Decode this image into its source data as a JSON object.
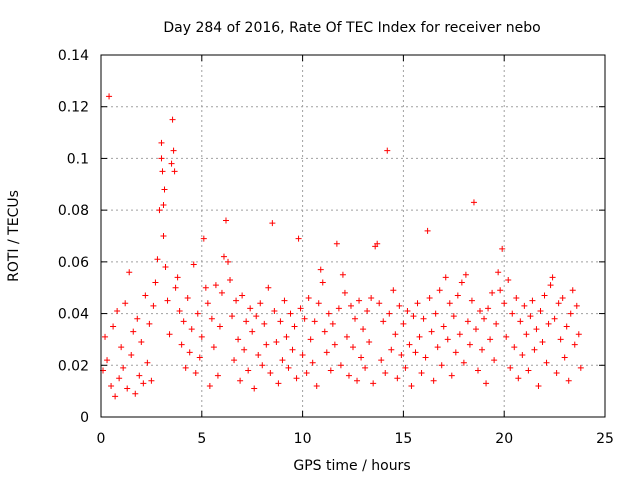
{
  "chart_data": {
    "type": "scatter",
    "title": "Day 284 of 2016, Rate Of TEC Index for receiver nebo",
    "xlabel": "GPS time / hours",
    "ylabel": "ROTI / TECUs",
    "xlim": [
      0,
      25
    ],
    "ylim": [
      0,
      0.14
    ],
    "grid": true,
    "marker": "+",
    "color": "#ff0000",
    "x_ticks": [
      0,
      5,
      10,
      15,
      20,
      25
    ],
    "x_tick_labels": [
      "0",
      "5",
      "10",
      "15",
      "20",
      "25"
    ],
    "y_ticks": [
      0,
      0.02,
      0.04,
      0.06,
      0.08,
      0.1,
      0.12,
      0.14
    ],
    "y_tick_labels": [
      "0",
      "0.02",
      "0.04",
      "0.06",
      "0.08",
      "0.1",
      "0.12",
      "0.14"
    ],
    "series": [
      {
        "name": "ROTI",
        "points": [
          [
            0.1,
            0.018
          ],
          [
            0.2,
            0.031
          ],
          [
            0.3,
            0.022
          ],
          [
            0.4,
            0.124
          ],
          [
            0.5,
            0.012
          ],
          [
            0.6,
            0.035
          ],
          [
            0.7,
            0.008
          ],
          [
            0.8,
            0.041
          ],
          [
            0.9,
            0.015
          ],
          [
            1.0,
            0.027
          ],
          [
            1.1,
            0.019
          ],
          [
            1.2,
            0.044
          ],
          [
            1.3,
            0.011
          ],
          [
            1.4,
            0.056
          ],
          [
            1.5,
            0.024
          ],
          [
            1.6,
            0.033
          ],
          [
            1.7,
            0.009
          ],
          [
            1.8,
            0.038
          ],
          [
            1.9,
            0.016
          ],
          [
            2.0,
            0.029
          ],
          [
            2.1,
            0.013
          ],
          [
            2.2,
            0.047
          ],
          [
            2.3,
            0.021
          ],
          [
            2.4,
            0.036
          ],
          [
            2.5,
            0.014
          ],
          [
            2.6,
            0.043
          ],
          [
            2.7,
            0.052
          ],
          [
            2.8,
            0.061
          ],
          [
            2.9,
            0.08
          ],
          [
            3.0,
            0.1
          ],
          [
            3.0,
            0.106
          ],
          [
            3.05,
            0.095
          ],
          [
            3.1,
            0.082
          ],
          [
            3.1,
            0.07
          ],
          [
            3.15,
            0.088
          ],
          [
            3.2,
            0.058
          ],
          [
            3.3,
            0.045
          ],
          [
            3.4,
            0.032
          ],
          [
            3.5,
            0.098
          ],
          [
            3.55,
            0.115
          ],
          [
            3.6,
            0.103
          ],
          [
            3.65,
            0.095
          ],
          [
            3.7,
            0.05
          ],
          [
            3.8,
            0.054
          ],
          [
            3.9,
            0.041
          ],
          [
            4.0,
            0.028
          ],
          [
            4.1,
            0.037
          ],
          [
            4.2,
            0.019
          ],
          [
            4.3,
            0.046
          ],
          [
            4.4,
            0.025
          ],
          [
            4.5,
            0.034
          ],
          [
            4.6,
            0.059
          ],
          [
            4.7,
            0.017
          ],
          [
            4.8,
            0.04
          ],
          [
            4.9,
            0.023
          ],
          [
            5.0,
            0.031
          ],
          [
            5.1,
            0.069
          ],
          [
            5.2,
            0.05
          ],
          [
            5.3,
            0.044
          ],
          [
            5.4,
            0.012
          ],
          [
            5.5,
            0.038
          ],
          [
            5.6,
            0.027
          ],
          [
            5.7,
            0.051
          ],
          [
            5.8,
            0.016
          ],
          [
            5.9,
            0.035
          ],
          [
            6.0,
            0.048
          ],
          [
            6.1,
            0.062
          ],
          [
            6.2,
            0.076
          ],
          [
            6.3,
            0.06
          ],
          [
            6.4,
            0.053
          ],
          [
            6.5,
            0.039
          ],
          [
            6.6,
            0.022
          ],
          [
            6.7,
            0.045
          ],
          [
            6.8,
            0.03
          ],
          [
            6.9,
            0.014
          ],
          [
            7.0,
            0.047
          ],
          [
            7.1,
            0.026
          ],
          [
            7.2,
            0.037
          ],
          [
            7.3,
            0.018
          ],
          [
            7.4,
            0.042
          ],
          [
            7.5,
            0.033
          ],
          [
            7.6,
            0.011
          ],
          [
            7.7,
            0.039
          ],
          [
            7.8,
            0.024
          ],
          [
            7.9,
            0.044
          ],
          [
            8.0,
            0.02
          ],
          [
            8.1,
            0.036
          ],
          [
            8.2,
            0.028
          ],
          [
            8.3,
            0.05
          ],
          [
            8.4,
            0.017
          ],
          [
            8.5,
            0.075
          ],
          [
            8.6,
            0.041
          ],
          [
            8.7,
            0.029
          ],
          [
            8.8,
            0.013
          ],
          [
            8.9,
            0.037
          ],
          [
            9.0,
            0.022
          ],
          [
            9.1,
            0.045
          ],
          [
            9.2,
            0.031
          ],
          [
            9.3,
            0.019
          ],
          [
            9.4,
            0.04
          ],
          [
            9.5,
            0.026
          ],
          [
            9.6,
            0.035
          ],
          [
            9.7,
            0.015
          ],
          [
            9.8,
            0.069
          ],
          [
            9.9,
            0.042
          ],
          [
            10.0,
            0.024
          ],
          [
            10.1,
            0.038
          ],
          [
            10.2,
            0.017
          ],
          [
            10.3,
            0.046
          ],
          [
            10.4,
            0.03
          ],
          [
            10.5,
            0.021
          ],
          [
            10.6,
            0.037
          ],
          [
            10.7,
            0.012
          ],
          [
            10.8,
            0.044
          ],
          [
            10.9,
            0.057
          ],
          [
            11.0,
            0.052
          ],
          [
            11.1,
            0.033
          ],
          [
            11.2,
            0.025
          ],
          [
            11.3,
            0.04
          ],
          [
            11.4,
            0.018
          ],
          [
            11.5,
            0.036
          ],
          [
            11.6,
            0.028
          ],
          [
            11.7,
            0.067
          ],
          [
            11.8,
            0.042
          ],
          [
            11.9,
            0.02
          ],
          [
            12.0,
            0.055
          ],
          [
            12.1,
            0.048
          ],
          [
            12.2,
            0.031
          ],
          [
            12.3,
            0.016
          ],
          [
            12.4,
            0.043
          ],
          [
            12.5,
            0.027
          ],
          [
            12.6,
            0.038
          ],
          [
            12.7,
            0.014
          ],
          [
            12.8,
            0.045
          ],
          [
            12.9,
            0.023
          ],
          [
            13.0,
            0.034
          ],
          [
            13.1,
            0.019
          ],
          [
            13.2,
            0.041
          ],
          [
            13.3,
            0.029
          ],
          [
            13.4,
            0.046
          ],
          [
            13.5,
            0.013
          ],
          [
            13.6,
            0.066
          ],
          [
            13.7,
            0.067
          ],
          [
            13.8,
            0.044
          ],
          [
            13.9,
            0.022
          ],
          [
            14.0,
            0.037
          ],
          [
            14.1,
            0.017
          ],
          [
            14.2,
            0.103
          ],
          [
            14.3,
            0.04
          ],
          [
            14.4,
            0.026
          ],
          [
            14.5,
            0.049
          ],
          [
            14.6,
            0.032
          ],
          [
            14.7,
            0.015
          ],
          [
            14.8,
            0.043
          ],
          [
            14.9,
            0.024
          ],
          [
            15.0,
            0.036
          ],
          [
            15.1,
            0.019
          ],
          [
            15.2,
            0.041
          ],
          [
            15.3,
            0.028
          ],
          [
            15.4,
            0.012
          ],
          [
            15.5,
            0.039
          ],
          [
            15.6,
            0.025
          ],
          [
            15.7,
            0.044
          ],
          [
            15.8,
            0.031
          ],
          [
            15.9,
            0.017
          ],
          [
            16.0,
            0.038
          ],
          [
            16.1,
            0.023
          ],
          [
            16.2,
            0.072
          ],
          [
            16.3,
            0.046
          ],
          [
            16.4,
            0.033
          ],
          [
            16.5,
            0.014
          ],
          [
            16.6,
            0.04
          ],
          [
            16.7,
            0.027
          ],
          [
            16.8,
            0.049
          ],
          [
            16.9,
            0.02
          ],
          [
            17.0,
            0.035
          ],
          [
            17.1,
            0.054
          ],
          [
            17.2,
            0.03
          ],
          [
            17.3,
            0.044
          ],
          [
            17.4,
            0.016
          ],
          [
            17.5,
            0.039
          ],
          [
            17.6,
            0.025
          ],
          [
            17.7,
            0.047
          ],
          [
            17.8,
            0.032
          ],
          [
            17.9,
            0.052
          ],
          [
            18.0,
            0.021
          ],
          [
            18.1,
            0.055
          ],
          [
            18.2,
            0.037
          ],
          [
            18.3,
            0.028
          ],
          [
            18.4,
            0.045
          ],
          [
            18.5,
            0.083
          ],
          [
            18.6,
            0.034
          ],
          [
            18.7,
            0.018
          ],
          [
            18.8,
            0.041
          ],
          [
            18.9,
            0.026
          ],
          [
            19.0,
            0.038
          ],
          [
            19.1,
            0.013
          ],
          [
            19.2,
            0.042
          ],
          [
            19.3,
            0.03
          ],
          [
            19.4,
            0.048
          ],
          [
            19.5,
            0.022
          ],
          [
            19.6,
            0.036
          ],
          [
            19.7,
            0.056
          ],
          [
            19.8,
            0.049
          ],
          [
            19.9,
            0.065
          ],
          [
            20.0,
            0.044
          ],
          [
            20.1,
            0.031
          ],
          [
            20.2,
            0.053
          ],
          [
            20.3,
            0.019
          ],
          [
            20.4,
            0.04
          ],
          [
            20.5,
            0.027
          ],
          [
            20.6,
            0.046
          ],
          [
            20.7,
            0.015
          ],
          [
            20.8,
            0.037
          ],
          [
            20.9,
            0.024
          ],
          [
            21.0,
            0.043
          ],
          [
            21.1,
            0.032
          ],
          [
            21.2,
            0.018
          ],
          [
            21.3,
            0.039
          ],
          [
            21.4,
            0.045
          ],
          [
            21.5,
            0.026
          ],
          [
            21.6,
            0.034
          ],
          [
            21.7,
            0.012
          ],
          [
            21.8,
            0.041
          ],
          [
            21.9,
            0.029
          ],
          [
            22.0,
            0.047
          ],
          [
            22.1,
            0.021
          ],
          [
            22.2,
            0.036
          ],
          [
            22.3,
            0.051
          ],
          [
            22.4,
            0.054
          ],
          [
            22.5,
            0.038
          ],
          [
            22.6,
            0.017
          ],
          [
            22.7,
            0.044
          ],
          [
            22.8,
            0.03
          ],
          [
            22.9,
            0.046
          ],
          [
            23.0,
            0.023
          ],
          [
            23.1,
            0.035
          ],
          [
            23.2,
            0.014
          ],
          [
            23.3,
            0.04
          ],
          [
            23.4,
            0.049
          ],
          [
            23.5,
            0.028
          ],
          [
            23.6,
            0.043
          ],
          [
            23.7,
            0.032
          ],
          [
            23.8,
            0.019
          ]
        ]
      }
    ]
  }
}
